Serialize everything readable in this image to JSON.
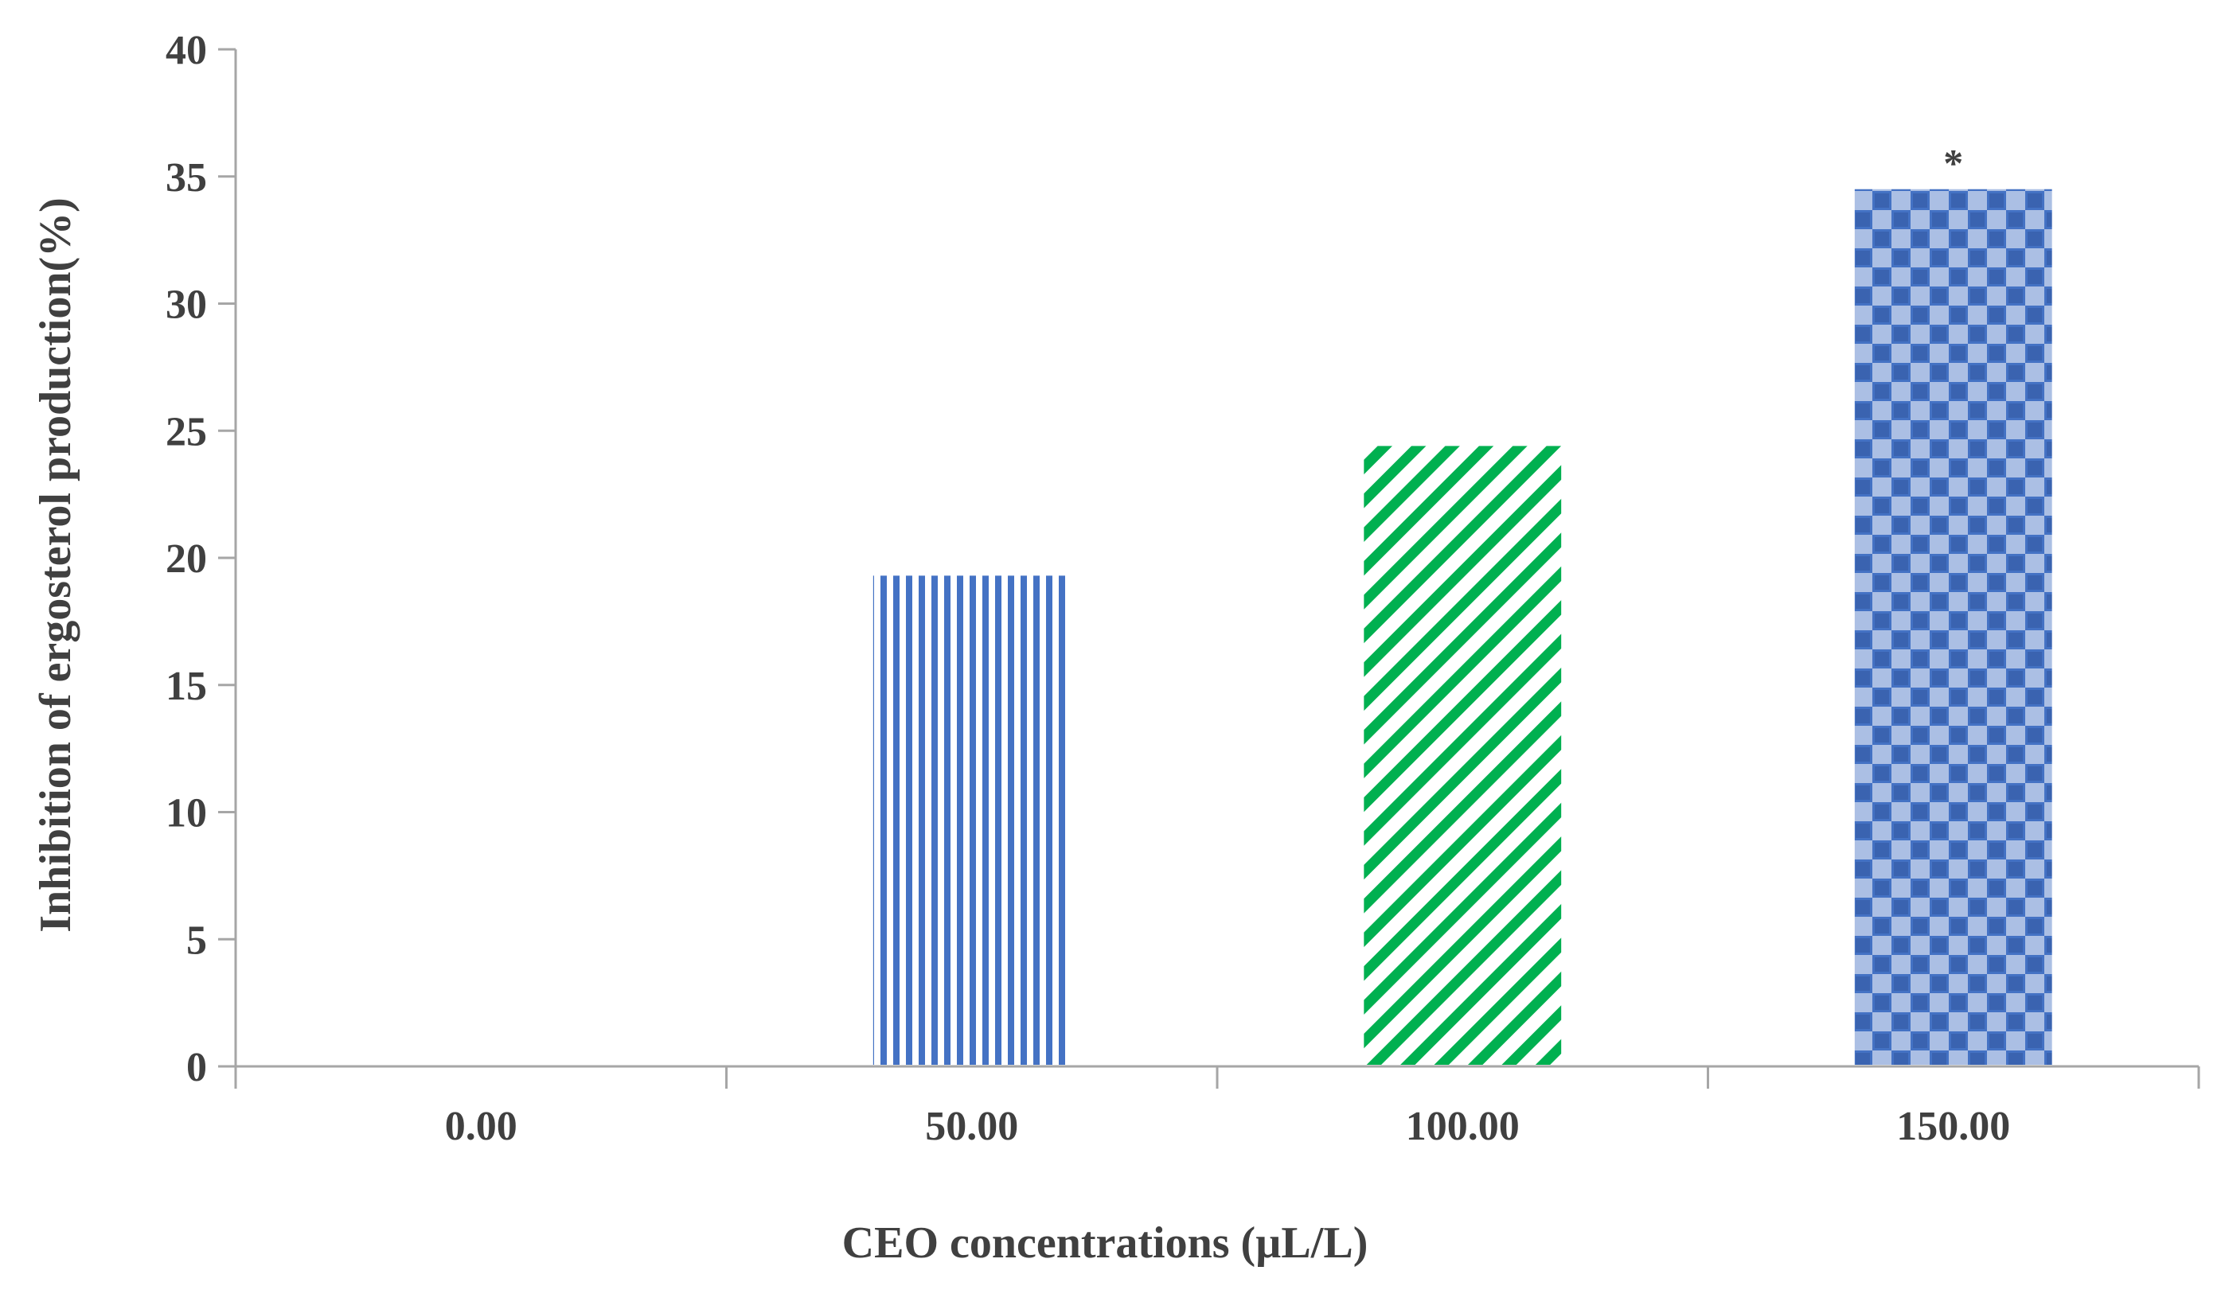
{
  "chart_data": {
    "type": "bar",
    "title": "",
    "xlabel": "CEO concentrations (µL/L)",
    "ylabel": "Inhibition of ergosterol production(%)",
    "categories": [
      "0.00",
      "50.00",
      "100.00",
      "150.00"
    ],
    "values": [
      0,
      19.3,
      24.4,
      34.5
    ],
    "ylim": [
      0,
      40
    ],
    "yticks": [
      0,
      5,
      10,
      15,
      20,
      25,
      30,
      35,
      40
    ],
    "grid": false,
    "legend": "none",
    "bars": [
      {
        "category": "0.00",
        "pattern": "none",
        "color": ""
      },
      {
        "category": "50.00",
        "pattern": "vertical-stripes",
        "color": "#4472C4"
      },
      {
        "category": "100.00",
        "pattern": "diagonal-stripes",
        "color": "#00B050"
      },
      {
        "category": "150.00",
        "pattern": "checkerboard",
        "color": "#4472C4"
      }
    ],
    "annotations": [
      {
        "category": "150.00",
        "text": "*"
      }
    ]
  },
  "colors": {
    "axis": "#A6A6A6",
    "text": "#404040",
    "blue": "#4472C4",
    "green": "#00B050"
  }
}
